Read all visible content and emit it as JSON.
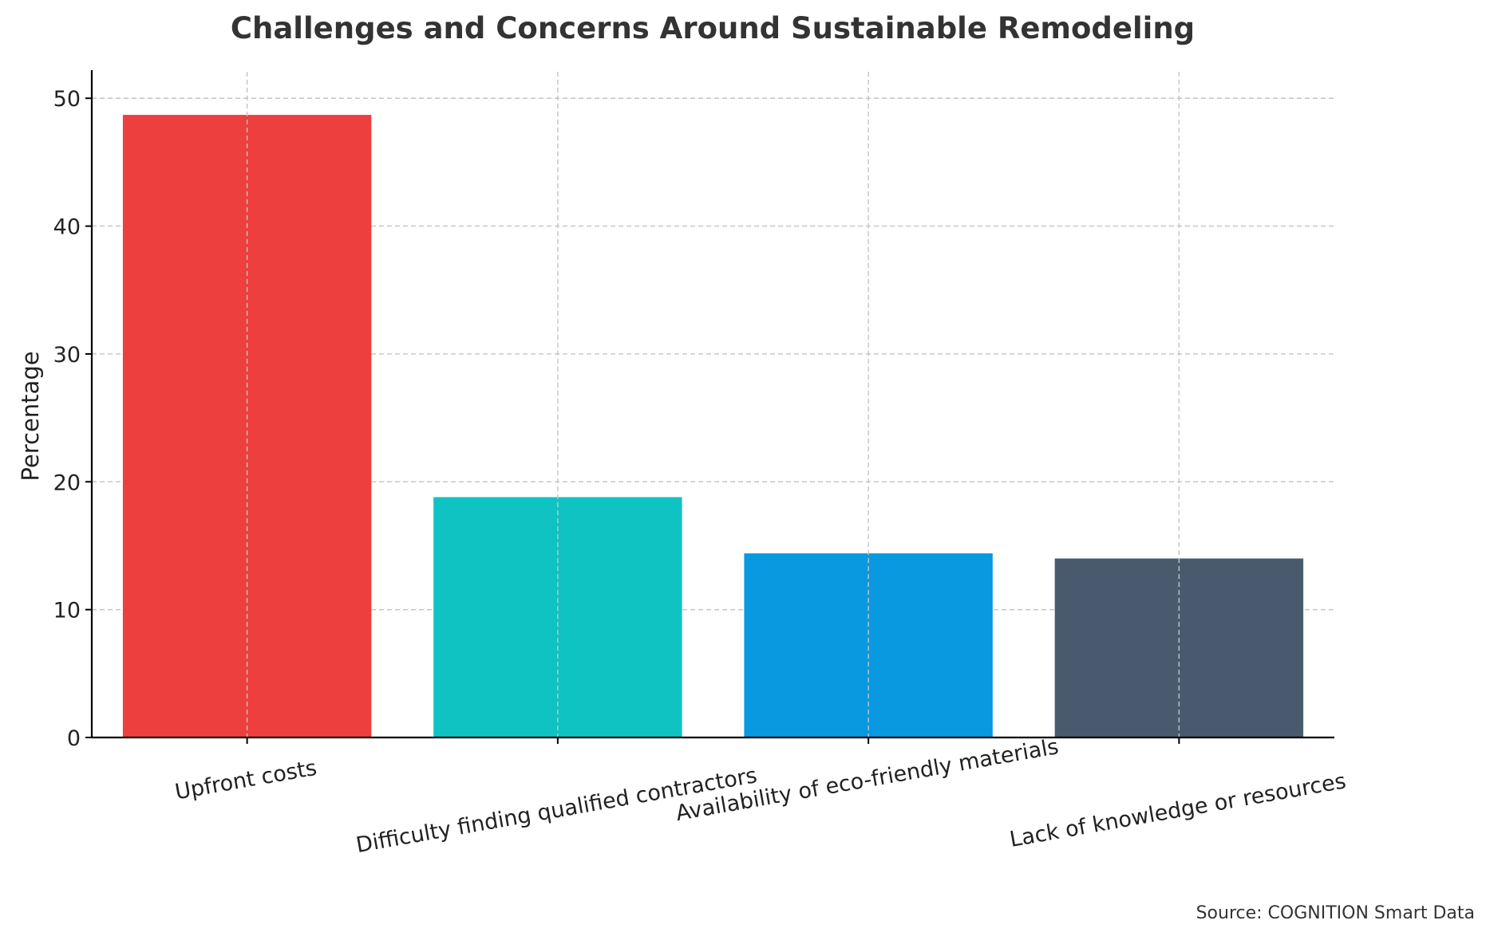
{
  "chart_data": {
    "type": "bar",
    "title": "Challenges and Concerns Around Sustainable Remodeling",
    "xlabel": "",
    "ylabel": "Percentage",
    "categories": [
      "Upfront costs",
      "Difficulty finding qualified contractors",
      "Availability of eco-friendly materials",
      "Lack of knowledge or resources"
    ],
    "values": [
      48.7,
      18.8,
      14.4,
      14.0
    ],
    "colors": [
      "#ee3f3f",
      "#10c3c3",
      "#0899e0",
      "#4a5a6e"
    ],
    "ylim": [
      0,
      51.2
    ],
    "yticks": [
      0,
      10,
      20,
      30,
      40,
      50
    ],
    "ytick_labels": [
      "0",
      "10",
      "20",
      "30",
      "40",
      "50"
    ],
    "grid": true,
    "xtick_rotation_deg": -10
  },
  "source_note": "Source: COGNITION Smart Data"
}
